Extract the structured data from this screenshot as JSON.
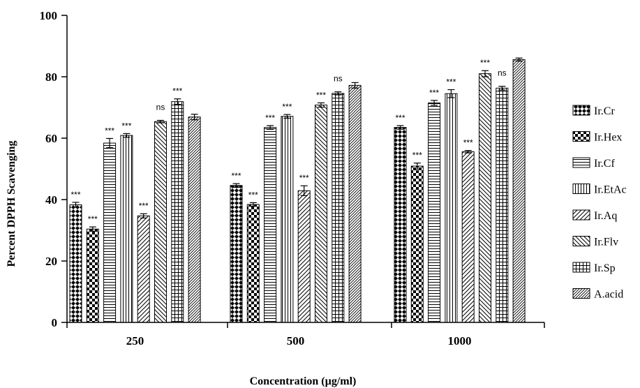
{
  "chart_data": {
    "type": "bar",
    "xlabel": "Concentration (µg/ml)",
    "ylabel": "Percent DPPH Scavenging",
    "ylim": [
      0,
      100
    ],
    "yticks": [
      "0",
      "20",
      "40",
      "60",
      "80",
      "100"
    ],
    "categories": [
      "250",
      "500",
      "1000"
    ],
    "legend_position": "right",
    "series": [
      {
        "name": "Ir.Cr",
        "pattern": "cross",
        "values": [
          38.3,
          44.6,
          63.5
        ],
        "errors": [
          0.8,
          0.6,
          0.6
        ],
        "labels": [
          "***",
          "***",
          "***"
        ]
      },
      {
        "name": "Ir.Hex",
        "pattern": "checker",
        "values": [
          30.4,
          38.4,
          50.9
        ],
        "errors": [
          0.7,
          0.6,
          1.0
        ],
        "labels": [
          "***",
          "***",
          "***"
        ]
      },
      {
        "name": "Ir.Cf",
        "pattern": "hlines",
        "values": [
          58.4,
          63.5,
          71.5
        ],
        "errors": [
          1.5,
          0.6,
          0.8
        ],
        "labels": [
          "***",
          "***",
          "***"
        ]
      },
      {
        "name": "Ir.EtAc",
        "pattern": "vlines",
        "values": [
          60.9,
          67.1,
          74.5
        ],
        "errors": [
          0.6,
          0.6,
          1.3
        ],
        "labels": [
          "***",
          "***",
          "***"
        ]
      },
      {
        "name": "Ir.Aq",
        "pattern": "diag",
        "values": [
          34.7,
          42.9,
          55.6
        ],
        "errors": [
          0.7,
          1.6,
          0.4
        ],
        "labels": [
          "***",
          "***",
          "***"
        ]
      },
      {
        "name": "Ir.Flv",
        "pattern": "backdiag",
        "values": [
          65.4,
          70.8,
          81.0
        ],
        "errors": [
          0.4,
          0.7,
          1.0
        ],
        "labels": [
          "ns",
          "***",
          "***"
        ]
      },
      {
        "name": "Ir.Sp",
        "pattern": "grid",
        "values": [
          71.9,
          74.6,
          76.3
        ],
        "errors": [
          0.9,
          0.5,
          0.6
        ],
        "labels": [
          "***",
          "ns",
          "ns"
        ]
      },
      {
        "name": "A.acid",
        "pattern": "dense",
        "values": [
          66.9,
          77.2,
          85.6
        ],
        "errors": [
          0.9,
          0.9,
          0.5
        ],
        "labels": [
          "",
          "",
          ""
        ]
      }
    ]
  }
}
